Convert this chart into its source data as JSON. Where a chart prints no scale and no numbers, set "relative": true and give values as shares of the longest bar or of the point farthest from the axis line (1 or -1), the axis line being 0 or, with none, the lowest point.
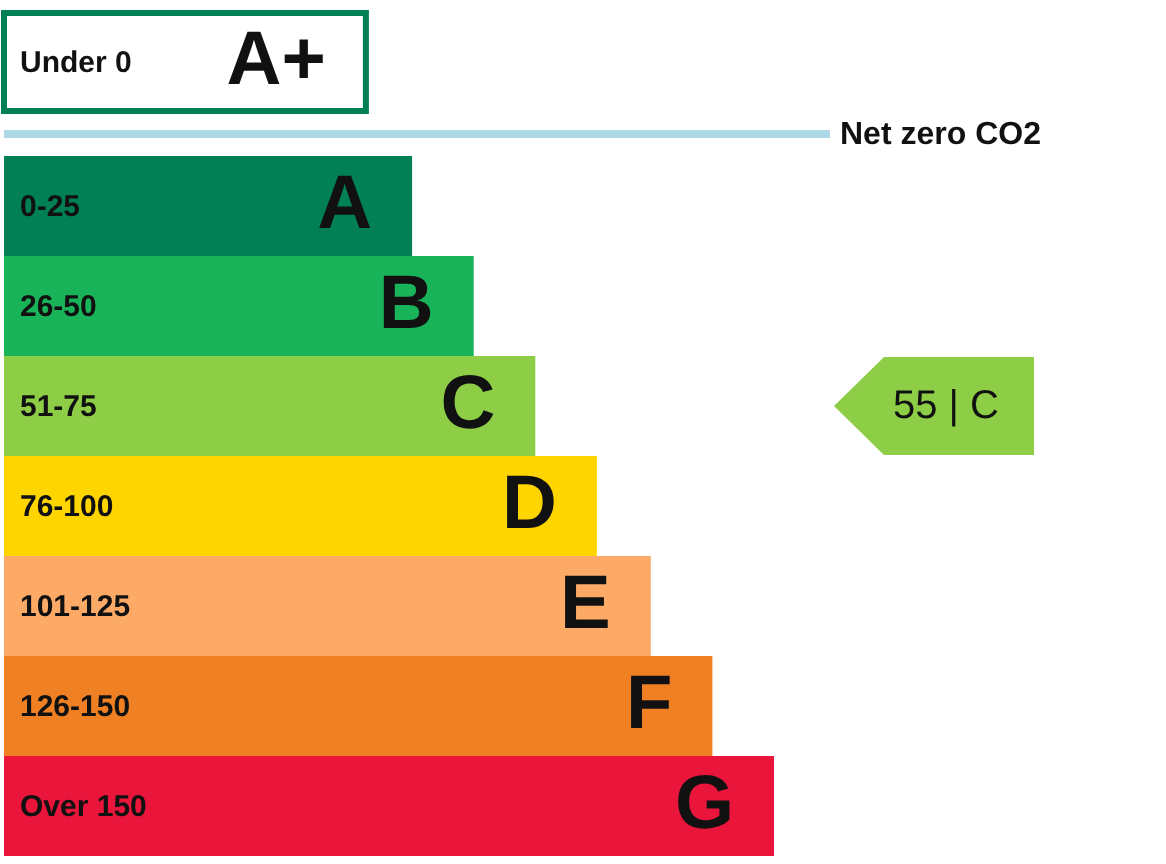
{
  "chart_data": {
    "type": "bar",
    "orientation": "horizontal",
    "relative": true,
    "categories": [
      "Under 0",
      "0-25",
      "26-50",
      "51-75",
      "76-100",
      "101-125",
      "126-150",
      "Over 150"
    ],
    "values": [
      0.47,
      0.53,
      0.61,
      0.69,
      0.77,
      0.84,
      0.92,
      1
    ],
    "colors": [
      "#008054",
      "#008054",
      "#19b459",
      "#8dce46",
      "#ffd500",
      "#fcaa65",
      "#ef8023",
      "#e9153b"
    ],
    "annotations": [
      {
        "text": "A+",
        "x": 0.47,
        "y": "Under 0"
      },
      {
        "text": "A",
        "x": 0.53,
        "y": "0-25"
      },
      {
        "text": "B",
        "x": 0.61,
        "y": "26-50"
      },
      {
        "text": "C",
        "x": 0.69,
        "y": "51-75"
      },
      {
        "text": "D",
        "x": 0.77,
        "y": "76-100"
      },
      {
        "text": "E",
        "x": 0.84,
        "y": "101-125"
      },
      {
        "text": "F",
        "x": 0.92,
        "y": "126-150"
      },
      {
        "text": "G",
        "x": 1,
        "y": "Over 150"
      },
      "55 | C"
    ],
    "ref_lines": [
      {
        "axis": "y",
        "value": "Under 0",
        "label": "Net zero CO2",
        "color": "#add8e6"
      }
    ]
  }
}
